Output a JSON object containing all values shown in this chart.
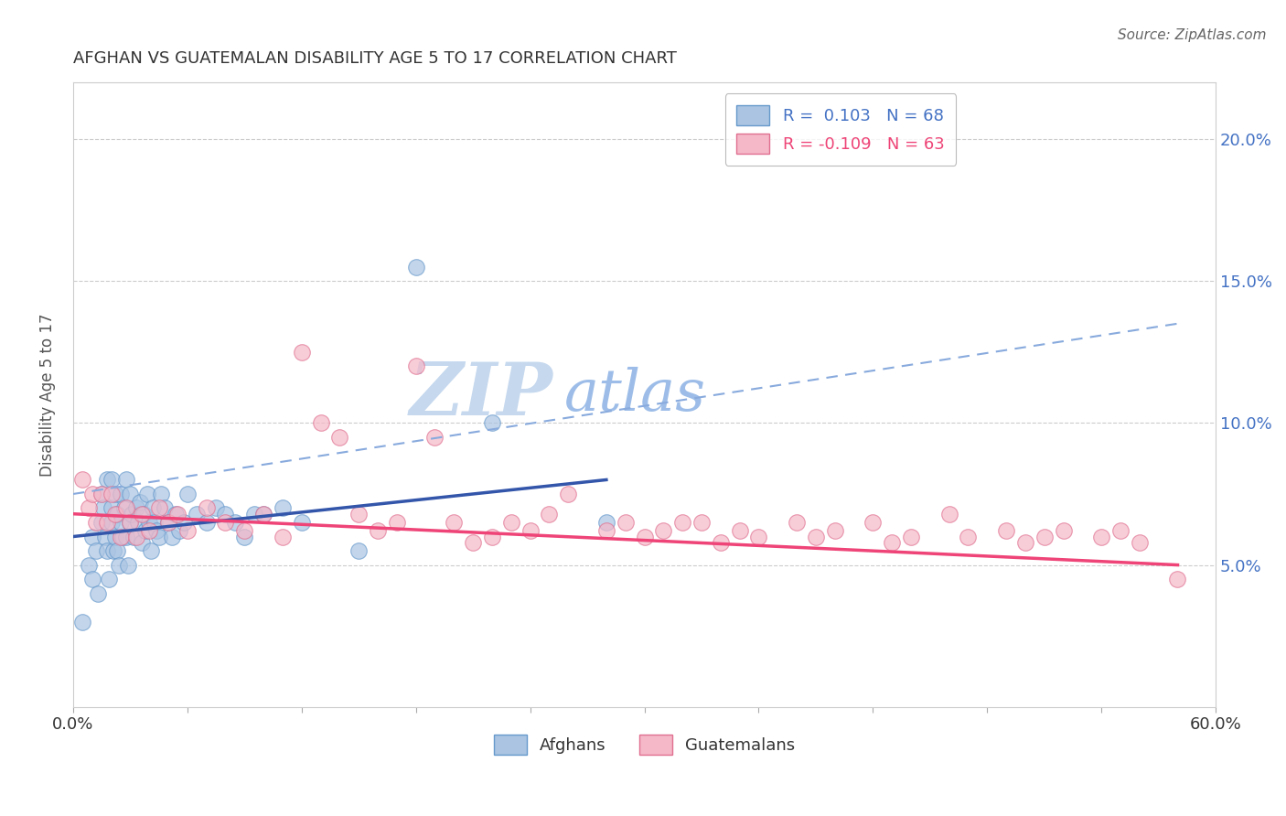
{
  "title": "AFGHAN VS GUATEMALAN DISABILITY AGE 5 TO 17 CORRELATION CHART",
  "source": "Source: ZipAtlas.com",
  "ylabel": "Disability Age 5 to 17",
  "xlim": [
    0.0,
    0.6
  ],
  "ylim": [
    0.0,
    0.22
  ],
  "yticks": [
    0.05,
    0.1,
    0.15,
    0.2
  ],
  "ytick_labels": [
    "5.0%",
    "10.0%",
    "15.0%",
    "20.0%"
  ],
  "xtick_labels": [
    "0.0%",
    "",
    "",
    "",
    "",
    "",
    "",
    "",
    "",
    "",
    "60.0%"
  ],
  "afghan_fill_color": "#aac4e2",
  "afghan_edge_color": "#6699cc",
  "guatemalan_fill_color": "#f5b8c8",
  "guatemalan_edge_color": "#e07090",
  "afghan_line_color": "#3355aa",
  "guatemalan_line_color": "#ee4477",
  "dashed_line_color": "#88aadd",
  "r_afghan": 0.103,
  "n_afghan": 68,
  "r_guatemalan": -0.109,
  "n_guatemalan": 63,
  "watermark_zip": "ZIP",
  "watermark_atlas": "atlas",
  "watermark_color_zip": "#c8daf0",
  "watermark_color_atlas": "#9dbde8",
  "background_color": "#ffffff",
  "grid_color": "#cccccc",
  "legend_box_color": "#aaaaaa",
  "right_axis_color": "#4472c4",
  "afghan_scatter_x": [
    0.005,
    0.008,
    0.01,
    0.01,
    0.012,
    0.013,
    0.015,
    0.015,
    0.016,
    0.017,
    0.018,
    0.018,
    0.019,
    0.02,
    0.02,
    0.02,
    0.021,
    0.022,
    0.022,
    0.023,
    0.023,
    0.024,
    0.025,
    0.025,
    0.026,
    0.027,
    0.028,
    0.028,
    0.029,
    0.03,
    0.03,
    0.031,
    0.032,
    0.033,
    0.034,
    0.035,
    0.036,
    0.037,
    0.038,
    0.039,
    0.04,
    0.041,
    0.042,
    0.043,
    0.044,
    0.045,
    0.046,
    0.048,
    0.05,
    0.052,
    0.054,
    0.056,
    0.058,
    0.06,
    0.065,
    0.07,
    0.075,
    0.08,
    0.085,
    0.09,
    0.095,
    0.1,
    0.11,
    0.12,
    0.15,
    0.18,
    0.22,
    0.28
  ],
  "afghan_scatter_y": [
    0.03,
    0.05,
    0.045,
    0.06,
    0.055,
    0.04,
    0.065,
    0.075,
    0.07,
    0.06,
    0.055,
    0.08,
    0.045,
    0.065,
    0.07,
    0.08,
    0.055,
    0.06,
    0.075,
    0.055,
    0.068,
    0.05,
    0.065,
    0.075,
    0.06,
    0.07,
    0.06,
    0.08,
    0.05,
    0.065,
    0.075,
    0.068,
    0.06,
    0.07,
    0.065,
    0.072,
    0.058,
    0.068,
    0.062,
    0.075,
    0.065,
    0.055,
    0.07,
    0.065,
    0.062,
    0.06,
    0.075,
    0.07,
    0.065,
    0.06,
    0.068,
    0.062,
    0.065,
    0.075,
    0.068,
    0.065,
    0.07,
    0.068,
    0.065,
    0.06,
    0.068,
    0.068,
    0.07,
    0.065,
    0.055,
    0.155,
    0.1,
    0.065
  ],
  "guatemalan_scatter_x": [
    0.005,
    0.008,
    0.01,
    0.012,
    0.015,
    0.018,
    0.02,
    0.022,
    0.025,
    0.028,
    0.03,
    0.033,
    0.036,
    0.04,
    0.045,
    0.05,
    0.055,
    0.06,
    0.07,
    0.08,
    0.09,
    0.1,
    0.11,
    0.12,
    0.13,
    0.14,
    0.15,
    0.16,
    0.17,
    0.18,
    0.19,
    0.2,
    0.21,
    0.22,
    0.23,
    0.24,
    0.25,
    0.26,
    0.28,
    0.29,
    0.3,
    0.31,
    0.32,
    0.33,
    0.34,
    0.35,
    0.36,
    0.38,
    0.39,
    0.4,
    0.42,
    0.43,
    0.44,
    0.46,
    0.47,
    0.49,
    0.5,
    0.51,
    0.52,
    0.54,
    0.55,
    0.56,
    0.58
  ],
  "guatemalan_scatter_y": [
    0.08,
    0.07,
    0.075,
    0.065,
    0.075,
    0.065,
    0.075,
    0.068,
    0.06,
    0.07,
    0.065,
    0.06,
    0.068,
    0.062,
    0.07,
    0.065,
    0.068,
    0.062,
    0.07,
    0.065,
    0.062,
    0.068,
    0.06,
    0.125,
    0.1,
    0.095,
    0.068,
    0.062,
    0.065,
    0.12,
    0.095,
    0.065,
    0.058,
    0.06,
    0.065,
    0.062,
    0.068,
    0.075,
    0.062,
    0.065,
    0.06,
    0.062,
    0.065,
    0.065,
    0.058,
    0.062,
    0.06,
    0.065,
    0.06,
    0.062,
    0.065,
    0.058,
    0.06,
    0.068,
    0.06,
    0.062,
    0.058,
    0.06,
    0.062,
    0.06,
    0.062,
    0.058,
    0.045
  ],
  "afghan_line_x0": 0.0,
  "afghan_line_y0": 0.06,
  "afghan_line_x1": 0.28,
  "afghan_line_y1": 0.08,
  "guatemalan_line_x0": 0.0,
  "guatemalan_line_y0": 0.068,
  "guatemalan_line_x1": 0.58,
  "guatemalan_line_y1": 0.05,
  "dashed_line_x0": 0.0,
  "dashed_line_y0": 0.075,
  "dashed_line_x1": 0.58,
  "dashed_line_y1": 0.135
}
